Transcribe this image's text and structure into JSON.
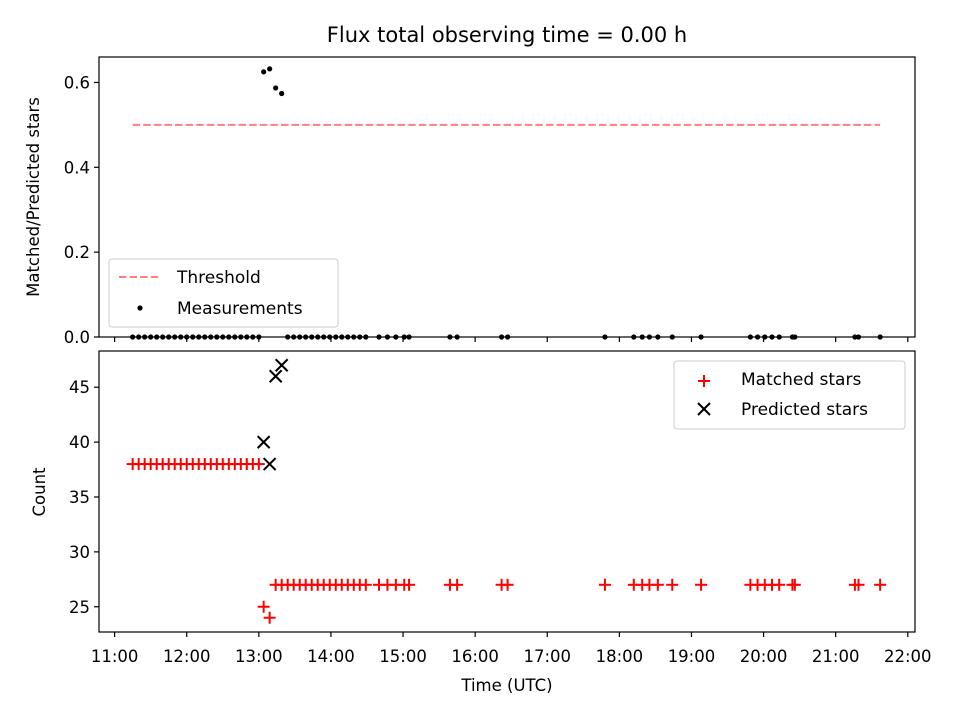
{
  "chart_data": [
    {
      "type": "scatter",
      "title": "Flux total observing time = 0.00 h",
      "xlabel": "",
      "ylabel": "Matched/Predicted stars",
      "ylim": [
        0,
        0.66
      ],
      "yticks": [
        0.0,
        0.2,
        0.4,
        0.6
      ],
      "ytick_labels": [
        "0.0",
        "0.2",
        "0.4",
        "0.6"
      ],
      "xlim": [
        "10:47",
        "22:06"
      ],
      "grid": false,
      "legend": {
        "placement": "bottom-left",
        "entries": [
          "Threshold",
          "Measurements"
        ]
      },
      "threshold": {
        "name": "Threshold",
        "color": "#ff7f7f",
        "style": "dashed",
        "y": 0.5,
        "x_start": "11:15",
        "x_end": "21:37"
      },
      "measurements": {
        "name": "Measurements",
        "color": "#000000",
        "points": [
          [
            "11:15",
            0
          ],
          [
            "11:20",
            0
          ],
          [
            "11:25",
            0
          ],
          [
            "11:30",
            0
          ],
          [
            "11:35",
            0
          ],
          [
            "11:40",
            0
          ],
          [
            "11:45",
            0
          ],
          [
            "11:50",
            0
          ],
          [
            "11:55",
            0
          ],
          [
            "12:00",
            0
          ],
          [
            "12:05",
            0
          ],
          [
            "12:10",
            0
          ],
          [
            "12:15",
            0
          ],
          [
            "12:20",
            0
          ],
          [
            "12:25",
            0
          ],
          [
            "12:30",
            0
          ],
          [
            "12:35",
            0
          ],
          [
            "12:40",
            0
          ],
          [
            "12:45",
            0
          ],
          [
            "12:50",
            0
          ],
          [
            "12:55",
            0
          ],
          [
            "13:00",
            0
          ],
          [
            "13:04",
            0.625
          ],
          [
            "13:09",
            0.632
          ],
          [
            "13:14",
            0.587
          ],
          [
            "13:19",
            0.574
          ],
          [
            "13:24",
            0
          ],
          [
            "13:29",
            0
          ],
          [
            "13:34",
            0
          ],
          [
            "13:39",
            0
          ],
          [
            "13:44",
            0
          ],
          [
            "13:49",
            0
          ],
          [
            "13:54",
            0
          ],
          [
            "13:59",
            0
          ],
          [
            "14:04",
            0
          ],
          [
            "14:09",
            0
          ],
          [
            "14:14",
            0
          ],
          [
            "14:19",
            0
          ],
          [
            "14:24",
            0
          ],
          [
            "14:29",
            0
          ],
          [
            "14:40",
            0
          ],
          [
            "14:47",
            0
          ],
          [
            "14:54",
            0
          ],
          [
            "15:01",
            0
          ],
          [
            "15:05",
            0
          ],
          [
            "15:39",
            0
          ],
          [
            "15:45",
            0
          ],
          [
            "16:22",
            0
          ],
          [
            "16:27",
            0
          ],
          [
            "17:48",
            0
          ],
          [
            "18:12",
            0
          ],
          [
            "18:19",
            0
          ],
          [
            "18:25",
            0
          ],
          [
            "18:32",
            0
          ],
          [
            "18:44",
            0
          ],
          [
            "19:08",
            0
          ],
          [
            "19:49",
            0
          ],
          [
            "19:55",
            0
          ],
          [
            "20:01",
            0
          ],
          [
            "20:07",
            0
          ],
          [
            "20:13",
            0
          ],
          [
            "20:24",
            0
          ],
          [
            "20:26",
            0
          ],
          [
            "21:16",
            0
          ],
          [
            "21:19",
            0
          ],
          [
            "21:37",
            0
          ]
        ]
      }
    },
    {
      "type": "scatter",
      "title": "",
      "xlabel": "Time (UTC)",
      "ylabel": "Count",
      "ylim": [
        22.7,
        48.3
      ],
      "yticks": [
        25,
        30,
        35,
        40,
        45
      ],
      "ytick_labels": [
        "25",
        "30",
        "35",
        "40",
        "45"
      ],
      "xticks": [
        "11:00",
        "12:00",
        "13:00",
        "14:00",
        "15:00",
        "16:00",
        "17:00",
        "18:00",
        "19:00",
        "20:00",
        "21:00",
        "22:00"
      ],
      "xtick_labels": [
        "11:00",
        "12:00",
        "13:00",
        "14:00",
        "15:00",
        "16:00",
        "17:00",
        "18:00",
        "19:00",
        "20:00",
        "21:00",
        "22:00"
      ],
      "xlim": [
        "10:47",
        "22:06"
      ],
      "grid": false,
      "legend": {
        "placement": "top-right",
        "entries": [
          "Matched stars",
          "Predicted stars"
        ]
      },
      "series": [
        {
          "name": "Matched stars",
          "marker": "plus",
          "color": "#ff0000",
          "points": [
            [
              "11:15",
              38
            ],
            [
              "11:20",
              38
            ],
            [
              "11:25",
              38
            ],
            [
              "11:30",
              38
            ],
            [
              "11:35",
              38
            ],
            [
              "11:40",
              38
            ],
            [
              "11:45",
              38
            ],
            [
              "11:50",
              38
            ],
            [
              "11:55",
              38
            ],
            [
              "12:00",
              38
            ],
            [
              "12:05",
              38
            ],
            [
              "12:10",
              38
            ],
            [
              "12:15",
              38
            ],
            [
              "12:20",
              38
            ],
            [
              "12:25",
              38
            ],
            [
              "12:30",
              38
            ],
            [
              "12:35",
              38
            ],
            [
              "12:40",
              38
            ],
            [
              "12:45",
              38
            ],
            [
              "12:50",
              38
            ],
            [
              "12:55",
              38
            ],
            [
              "13:00",
              38
            ],
            [
              "13:04",
              25
            ],
            [
              "13:09",
              24
            ],
            [
              "13:14",
              27
            ],
            [
              "13:19",
              27
            ],
            [
              "13:24",
              27
            ],
            [
              "13:29",
              27
            ],
            [
              "13:34",
              27
            ],
            [
              "13:39",
              27
            ],
            [
              "13:44",
              27
            ],
            [
              "13:49",
              27
            ],
            [
              "13:54",
              27
            ],
            [
              "13:59",
              27
            ],
            [
              "14:04",
              27
            ],
            [
              "14:09",
              27
            ],
            [
              "14:14",
              27
            ],
            [
              "14:19",
              27
            ],
            [
              "14:24",
              27
            ],
            [
              "14:29",
              27
            ],
            [
              "14:40",
              27
            ],
            [
              "14:47",
              27
            ],
            [
              "14:54",
              27
            ],
            [
              "15:01",
              27
            ],
            [
              "15:05",
              27
            ],
            [
              "15:39",
              27
            ],
            [
              "15:45",
              27
            ],
            [
              "16:22",
              27
            ],
            [
              "16:27",
              27
            ],
            [
              "17:48",
              27
            ],
            [
              "18:12",
              27
            ],
            [
              "18:19",
              27
            ],
            [
              "18:25",
              27
            ],
            [
              "18:32",
              27
            ],
            [
              "18:44",
              27
            ],
            [
              "19:08",
              27
            ],
            [
              "19:49",
              27
            ],
            [
              "19:55",
              27
            ],
            [
              "20:01",
              27
            ],
            [
              "20:07",
              27
            ],
            [
              "20:13",
              27
            ],
            [
              "20:24",
              27
            ],
            [
              "20:26",
              27
            ],
            [
              "21:16",
              27
            ],
            [
              "21:19",
              27
            ],
            [
              "21:37",
              27
            ]
          ]
        },
        {
          "name": "Predicted stars",
          "marker": "x",
          "color": "#000000",
          "points": [
            [
              "13:04",
              40
            ],
            [
              "13:09",
              38
            ],
            [
              "13:14",
              46
            ],
            [
              "13:19",
              47
            ]
          ]
        }
      ]
    }
  ]
}
